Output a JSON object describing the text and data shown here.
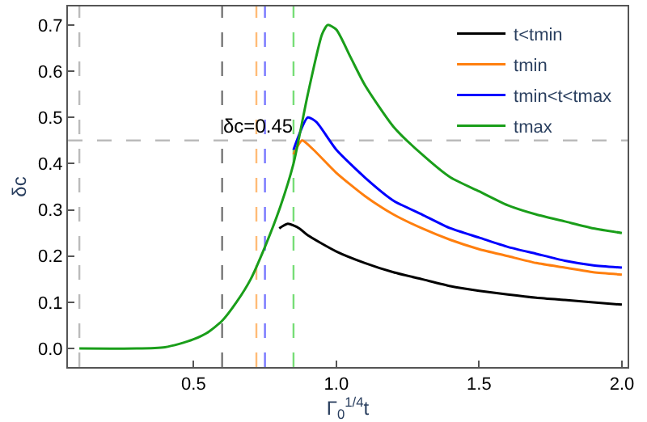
{
  "chart_data": {
    "type": "line",
    "xlabel": "Γ$_{0}$$^{1/4}$t",
    "ylabel": "δc",
    "xlim": [
      0.06,
      2.02
    ],
    "ylim": [
      -0.04,
      0.74
    ],
    "xticks": [
      0.5,
      {
        "value": 1,
        "label": "1.0"
      },
      1.5,
      {
        "value": 2,
        "label": "2.0"
      }
    ],
    "yticks": [
      {
        "value": 0,
        "label": "0.0"
      },
      0.1,
      0.2,
      0.3,
      0.4,
      0.5,
      0.6,
      0.7
    ],
    "grid": false,
    "legend": "top right",
    "marker": "none",
    "line_style": "solid",
    "ref_lines": [
      {
        "axis": "x",
        "value": 0.1,
        "color": "#bbbbbb",
        "line_style": "dashed"
      },
      {
        "axis": "x",
        "value": 0.6,
        "color": "#777777",
        "line_style": "dashed"
      },
      {
        "axis": "x",
        "value": 0.72,
        "color": "#ffbb77",
        "line_style": "dashed"
      },
      {
        "axis": "x",
        "value": 0.75,
        "color": "#7777ff",
        "line_style": "dashed"
      },
      {
        "axis": "x",
        "value": 0.85,
        "color": "#77dd77",
        "line_style": "dashed"
      },
      {
        "axis": "y",
        "value": 0.45,
        "label": "δc=0.45",
        "color": "#bbbbbb",
        "line_style": "dashed"
      }
    ],
    "series": [
      {
        "name": "t<tmin",
        "color": "#000000",
        "x": [
          0.8,
          0.83,
          0.87,
          0.9,
          1.0,
          1.1,
          1.2,
          1.3,
          1.4,
          1.5,
          1.6,
          1.7,
          1.8,
          1.9,
          2.0
        ],
        "values": [
          0.26,
          0.27,
          0.26,
          0.245,
          0.21,
          0.185,
          0.165,
          0.15,
          0.135,
          0.125,
          0.117,
          0.11,
          0.105,
          0.1,
          0.095
        ]
      },
      {
        "name": "tmin",
        "color": "#ff7f0e",
        "x": [
          0.85,
          0.88,
          0.92,
          1.0,
          1.1,
          1.2,
          1.3,
          1.4,
          1.5,
          1.6,
          1.7,
          1.8,
          1.9,
          2.0
        ],
        "values": [
          0.42,
          0.45,
          0.43,
          0.38,
          0.33,
          0.29,
          0.26,
          0.235,
          0.215,
          0.2,
          0.185,
          0.175,
          0.165,
          0.16
        ]
      },
      {
        "name": "tmin<t<tmax",
        "color": "#0000ff",
        "x": [
          0.85,
          0.9,
          0.93,
          1.0,
          1.1,
          1.2,
          1.3,
          1.4,
          1.5,
          1.6,
          1.7,
          1.8,
          1.9,
          2.0
        ],
        "values": [
          0.43,
          0.5,
          0.49,
          0.43,
          0.37,
          0.32,
          0.29,
          0.26,
          0.24,
          0.22,
          0.205,
          0.19,
          0.18,
          0.175
        ]
      },
      {
        "name": "tmax",
        "color": "#1a9e1a",
        "x": [
          0.1,
          0.3,
          0.4,
          0.45,
          0.5,
          0.55,
          0.6,
          0.65,
          0.7,
          0.75,
          0.8,
          0.85,
          0.9,
          0.95,
          0.97,
          1.0,
          1.05,
          1.1,
          1.2,
          1.3,
          1.4,
          1.5,
          1.6,
          1.7,
          1.8,
          1.9,
          2.0
        ],
        "values": [
          0,
          0,
          0.003,
          0.01,
          0.02,
          0.035,
          0.06,
          0.1,
          0.15,
          0.22,
          0.3,
          0.4,
          0.55,
          0.68,
          0.7,
          0.69,
          0.63,
          0.57,
          0.48,
          0.42,
          0.37,
          0.34,
          0.31,
          0.29,
          0.275,
          0.26,
          0.25
        ]
      }
    ]
  }
}
